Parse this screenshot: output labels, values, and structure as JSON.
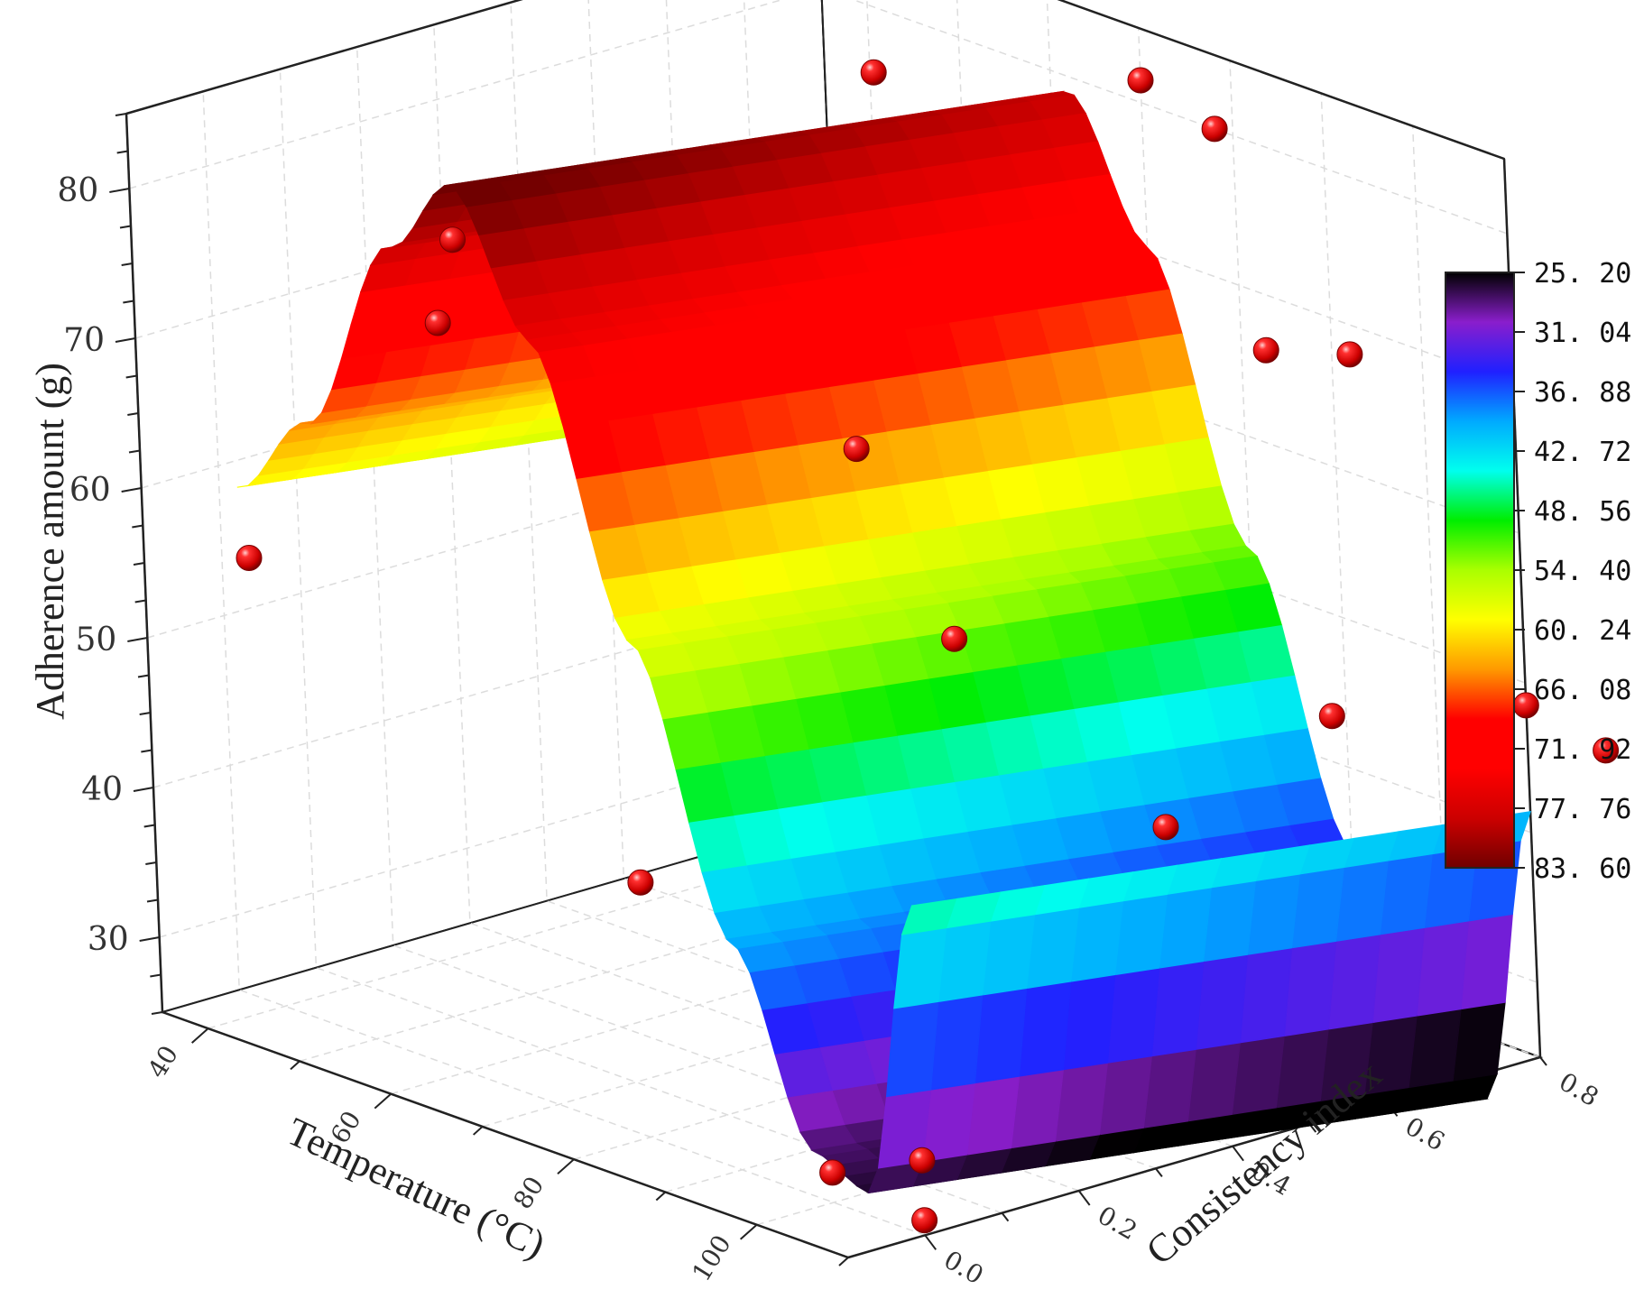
{
  "chart_data": {
    "type": "surface3d",
    "title": "",
    "axes": {
      "temperature": {
        "label": "Temperature (°C)",
        "ticks": [
          "40",
          "60",
          "80",
          "100"
        ],
        "range": [
          35,
          110
        ]
      },
      "consistency": {
        "label": "Consistency index",
        "ticks": [
          "0.0",
          "0.2",
          "0.4",
          "0.6",
          "0.8"
        ],
        "range": [
          -0.1,
          0.8
        ]
      },
      "adherence": {
        "label": "Adherence amount (g)",
        "ticks": [
          "30",
          "40",
          "50",
          "60",
          "70",
          "80"
        ],
        "range": [
          25,
          85
        ]
      }
    },
    "grid": true,
    "colorbar": {
      "labels": [
        "25. 20",
        "31. 04",
        "36. 88",
        "42. 72",
        "48. 56",
        "54. 40",
        "60. 24",
        "66. 08",
        "71. 92",
        "77. 76",
        "83. 60"
      ],
      "min": 25.2,
      "max": 83.6,
      "colors": [
        "#000000",
        "#8a1ecc",
        "#2020ff",
        "#00aaff",
        "#00ffee",
        "#00ee00",
        "#aaff00",
        "#ffff00",
        "#ff9900",
        "#ff0000",
        "#ff0000",
        "#cc0000",
        "#700000"
      ]
    },
    "surface": {
      "temperature_profile": [
        {
          "T": 37,
          "z": 59
        },
        {
          "T": 45,
          "z": 65
        },
        {
          "T": 55,
          "z": 79
        },
        {
          "T": 62,
          "z": 84.6
        },
        {
          "T": 70,
          "z": 76
        },
        {
          "T": 80,
          "z": 58
        },
        {
          "T": 90,
          "z": 40
        },
        {
          "T": 98,
          "z": 28
        },
        {
          "T": 104,
          "z": 26.5
        },
        {
          "T": 110,
          "z": 47
        }
      ],
      "consistency_slope_per_unit": -7
    },
    "points": [
      {
        "T": 38,
        "c": 0.0,
        "z": 54.5
      },
      {
        "T": 60,
        "c": 0.0,
        "z": 75
      },
      {
        "T": 62,
        "c": 0.0,
        "z": 81
      },
      {
        "T": 80,
        "c": 0.0,
        "z": 42
      },
      {
        "T": 100,
        "c": 0.0,
        "z": 27
      },
      {
        "T": 110,
        "c": 0.0,
        "z": 26
      },
      {
        "T": 80,
        "c": 0.3,
        "z": 66.5
      },
      {
        "T": 62,
        "c": 0.55,
        "z": 84
      },
      {
        "T": 70,
        "c": 0.8,
        "z": 81.5
      },
      {
        "T": 78,
        "c": 0.8,
        "z": 80
      },
      {
        "T": 90,
        "c": 0.3,
        "z": 56
      },
      {
        "T": 100,
        "c": 0.6,
        "z": 73
      },
      {
        "T": 92,
        "c": 0.8,
        "z": 68
      },
      {
        "T": 104,
        "c": 0.4,
        "z": 45
      },
      {
        "T": 110,
        "c": 0.0,
        "z": 30
      },
      {
        "T": 104,
        "c": 0.8,
        "z": 60
      },
      {
        "T": 110,
        "c": 0.55,
        "z": 51.5
      },
      {
        "T": 110,
        "c": 0.8,
        "z": 48.5
      },
      {
        "T": 110,
        "c": 0.9,
        "z": 44
      },
      {
        "T": 110,
        "c": 0.98,
        "z": 44
      }
    ]
  }
}
